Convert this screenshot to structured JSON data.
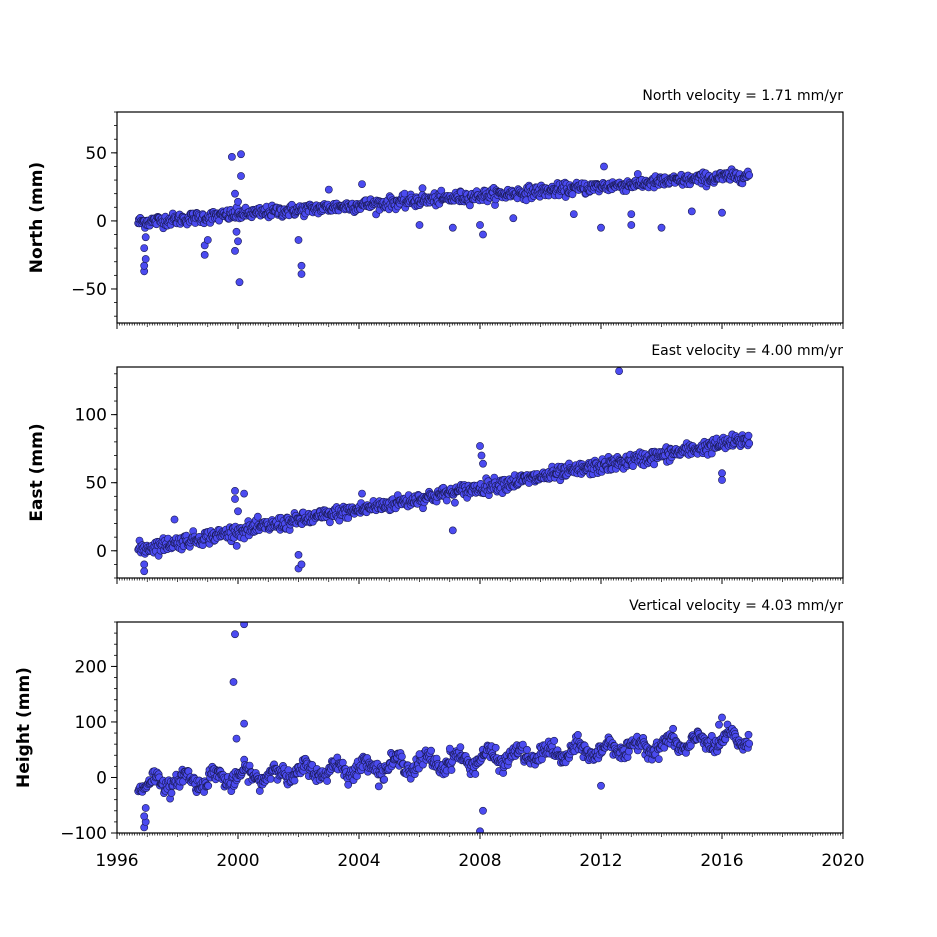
{
  "chart_data": [
    {
      "type": "scatter",
      "velocity_label": "North velocity = 1.71 mm/yr",
      "ylabel": "North (mm)",
      "xlim": [
        1996,
        2020
      ],
      "ylim": [
        -75,
        80
      ],
      "yticks": [
        -50,
        0,
        50
      ],
      "ytick_labels": [
        "−50",
        "0",
        "50"
      ],
      "velocity": 1.71,
      "x_data_range": [
        1996.7,
        2016.9
      ],
      "trend_start": -1,
      "scatter_sd": 2.2,
      "point_color": "#4b4bf0",
      "outliers": [
        {
          "x": 1996.9,
          "y": -37
        },
        {
          "x": 1996.9,
          "y": -33
        },
        {
          "x": 1996.95,
          "y": -28
        },
        {
          "x": 1996.9,
          "y": -20
        },
        {
          "x": 1996.95,
          "y": -12
        },
        {
          "x": 1998.9,
          "y": -25
        },
        {
          "x": 1998.9,
          "y": -18
        },
        {
          "x": 1999.0,
          "y": -14
        },
        {
          "x": 1999.8,
          "y": 47
        },
        {
          "x": 2000.1,
          "y": 49
        },
        {
          "x": 2000.1,
          "y": 33
        },
        {
          "x": 1999.9,
          "y": 20
        },
        {
          "x": 2000.0,
          "y": 14
        },
        {
          "x": 2000.05,
          "y": -45
        },
        {
          "x": 1999.9,
          "y": -22
        },
        {
          "x": 2000.0,
          "y": -15
        },
        {
          "x": 1999.95,
          "y": -8
        },
        {
          "x": 2002.1,
          "y": -33
        },
        {
          "x": 2002.1,
          "y": -39
        },
        {
          "x": 2002.0,
          "y": -14
        },
        {
          "x": 2003.0,
          "y": 23
        },
        {
          "x": 2004.1,
          "y": 27
        },
        {
          "x": 2006.1,
          "y": 24
        },
        {
          "x": 2006.0,
          "y": -3
        },
        {
          "x": 2007.1,
          "y": -5
        },
        {
          "x": 2008.1,
          "y": -10
        },
        {
          "x": 2008.0,
          "y": -3
        },
        {
          "x": 2009.1,
          "y": 2
        },
        {
          "x": 2011.1,
          "y": 5
        },
        {
          "x": 2012.1,
          "y": 40
        },
        {
          "x": 2012.0,
          "y": -5
        },
        {
          "x": 2013.0,
          "y": -3
        },
        {
          "x": 2013.0,
          "y": 5
        },
        {
          "x": 2014.0,
          "y": -5
        },
        {
          "x": 2015.0,
          "y": 7
        },
        {
          "x": 2016.0,
          "y": 6
        }
      ]
    },
    {
      "type": "scatter",
      "velocity_label": "East velocity = 4.00 mm/yr",
      "ylabel": "East (mm)",
      "xlim": [
        1996,
        2020
      ],
      "ylim": [
        -20,
        135
      ],
      "yticks": [
        0,
        50,
        100
      ],
      "ytick_labels": [
        "0",
        "50",
        "100"
      ],
      "velocity": 4.0,
      "x_data_range": [
        1996.7,
        2016.9
      ],
      "trend_start": 1,
      "scatter_sd": 2.6,
      "point_color": "#4b4bf0",
      "outliers": [
        {
          "x": 1996.9,
          "y": -15
        },
        {
          "x": 1996.9,
          "y": -10
        },
        {
          "x": 1997.9,
          "y": 23
        },
        {
          "x": 1999.9,
          "y": 44
        },
        {
          "x": 2000.2,
          "y": 42
        },
        {
          "x": 1999.9,
          "y": 38
        },
        {
          "x": 2000.0,
          "y": 29
        },
        {
          "x": 2002.0,
          "y": -13
        },
        {
          "x": 2002.1,
          "y": -10
        },
        {
          "x": 2002.0,
          "y": -3
        },
        {
          "x": 2004.1,
          "y": 42
        },
        {
          "x": 2007.1,
          "y": 15
        },
        {
          "x": 2008.0,
          "y": 77
        },
        {
          "x": 2008.05,
          "y": 70
        },
        {
          "x": 2008.1,
          "y": 64
        },
        {
          "x": 2012.6,
          "y": 132
        },
        {
          "x": 2016.0,
          "y": 52
        },
        {
          "x": 2016.0,
          "y": 57
        }
      ]
    },
    {
      "type": "scatter",
      "velocity_label": "Vertical velocity = 4.03 mm/yr",
      "ylabel": "Height (mm)",
      "xlabel": "",
      "xlim": [
        1996,
        2020
      ],
      "ylim": [
        -100,
        280
      ],
      "yticks": [
        -100,
        0,
        100,
        200
      ],
      "ytick_labels": [
        "−100",
        "0",
        "100",
        "200"
      ],
      "xticks": [
        1996,
        2000,
        2004,
        2008,
        2012,
        2016,
        2020
      ],
      "xtick_labels": [
        "1996",
        "2000",
        "2004",
        "2008",
        "2012",
        "2016",
        "2020"
      ],
      "velocity": 4.03,
      "x_data_range": [
        1996.7,
        2016.9
      ],
      "trend_start": -12,
      "scatter_sd": 7,
      "point_color": "#4b4bf0",
      "outliers": [
        {
          "x": 1999.9,
          "y": 258
        },
        {
          "x": 2000.2,
          "y": 276
        },
        {
          "x": 1999.85,
          "y": 172
        },
        {
          "x": 2000.2,
          "y": 97
        },
        {
          "x": 1999.95,
          "y": 70
        },
        {
          "x": 1996.9,
          "y": -90
        },
        {
          "x": 1996.95,
          "y": -80
        },
        {
          "x": 1996.9,
          "y": -70
        },
        {
          "x": 1996.95,
          "y": -55
        },
        {
          "x": 2008.0,
          "y": -97
        },
        {
          "x": 2008.1,
          "y": -60
        },
        {
          "x": 2016.0,
          "y": 108
        },
        {
          "x": 2015.9,
          "y": 95
        },
        {
          "x": 2006.0,
          "y": 42
        },
        {
          "x": 2007.0,
          "y": 52
        },
        {
          "x": 2012.0,
          "y": -15
        }
      ]
    }
  ]
}
